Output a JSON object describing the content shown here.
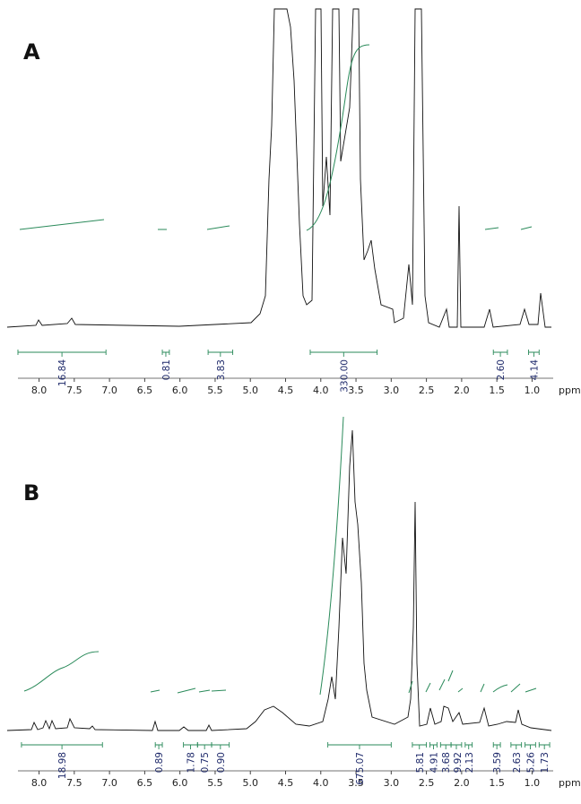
{
  "panels": [
    {
      "label": "A",
      "x_label": "ppm",
      "xlim": [
        8.3,
        0.7
      ],
      "xticks": [
        {
          "value": 8,
          "label": "8.0"
        },
        {
          "value": 7.5,
          "label": "7.5"
        },
        {
          "value": 7,
          "label": "7.0"
        },
        {
          "value": 6.5,
          "label": "6.5"
        },
        {
          "value": 6,
          "label": "6.0"
        },
        {
          "value": 5.5,
          "label": "5.5"
        },
        {
          "value": 5,
          "label": "5.0"
        },
        {
          "value": 4.5,
          "label": "4.5"
        },
        {
          "value": 4,
          "label": "4.0"
        },
        {
          "value": 3.5,
          "label": "3.5"
        },
        {
          "value": 3,
          "label": "3.0"
        },
        {
          "value": 2.5,
          "label": "2.5"
        },
        {
          "value": 2,
          "label": "2.0"
        },
        {
          "value": 1.5,
          "label": "1.5"
        },
        {
          "value": 1,
          "label": "1.0"
        }
      ],
      "integrals": {
        "ranges": [
          [
            8.3,
            7.05
          ],
          [
            6.25,
            6.15
          ],
          [
            5.6,
            5.25
          ],
          [
            4.15,
            3.2
          ],
          [
            1.55,
            1.35
          ],
          [
            1.05,
            0.9
          ]
        ],
        "values": [
          16.84,
          0.81,
          3.83,
          330,
          2.6,
          4.14
        ],
        "value_labels": [
          "16.84",
          "0.81",
          "3.83",
          "330.00",
          "2.60",
          "4.14"
        ]
      }
    },
    {
      "label": "B",
      "x_label": "ppm",
      "xlim": [
        8.3,
        0.7
      ],
      "xticks": [
        {
          "value": 8,
          "label": "8.0"
        },
        {
          "value": 7.5,
          "label": "7.5"
        },
        {
          "value": 7,
          "label": "7.0"
        },
        {
          "value": 6.5,
          "label": "6.5"
        },
        {
          "value": 6,
          "label": "6.0"
        },
        {
          "value": 5.5,
          "label": "5.5"
        },
        {
          "value": 5,
          "label": "5.0"
        },
        {
          "value": 4.5,
          "label": "4.5"
        },
        {
          "value": 4,
          "label": "4.0"
        },
        {
          "value": 3.5,
          "label": "3.5"
        },
        {
          "value": 3,
          "label": "3.0"
        },
        {
          "value": 2.5,
          "label": "2.5"
        },
        {
          "value": 2,
          "label": "2.0"
        },
        {
          "value": 1.5,
          "label": "1.5"
        },
        {
          "value": 1,
          "label": "1.0"
        }
      ],
      "integrals": {
        "ranges": [
          [
            8.25,
            7.1
          ],
          [
            6.35,
            6.25
          ],
          [
            5.95,
            5.75
          ],
          [
            5.75,
            5.55
          ],
          [
            5.55,
            5.3
          ],
          [
            3.9,
            3.0
          ],
          [
            2.7,
            2.5
          ],
          [
            2.45,
            2.35
          ],
          [
            2.3,
            2.15
          ],
          [
            2.15,
            2.0
          ],
          [
            1.95,
            1.85
          ],
          [
            1.55,
            1.45
          ],
          [
            1.3,
            1.15
          ],
          [
            1.1,
            0.95
          ],
          [
            0.9,
            0.75
          ]
        ],
        "values": [
          18.98,
          0.89,
          1.78,
          0.75,
          0.9,
          675.07,
          5.81,
          4.91,
          3.68,
          9.92,
          2.13,
          3.59,
          2.63,
          5.26,
          1.73
        ],
        "value_labels": [
          "18.98",
          "0.89",
          "1.78",
          "0.75",
          "0.90",
          "675.07",
          "5.81",
          "4.91",
          "3.68",
          "9.92",
          "2.13",
          "3.59",
          "2.63",
          "5.26",
          "1.73"
        ]
      }
    }
  ]
}
